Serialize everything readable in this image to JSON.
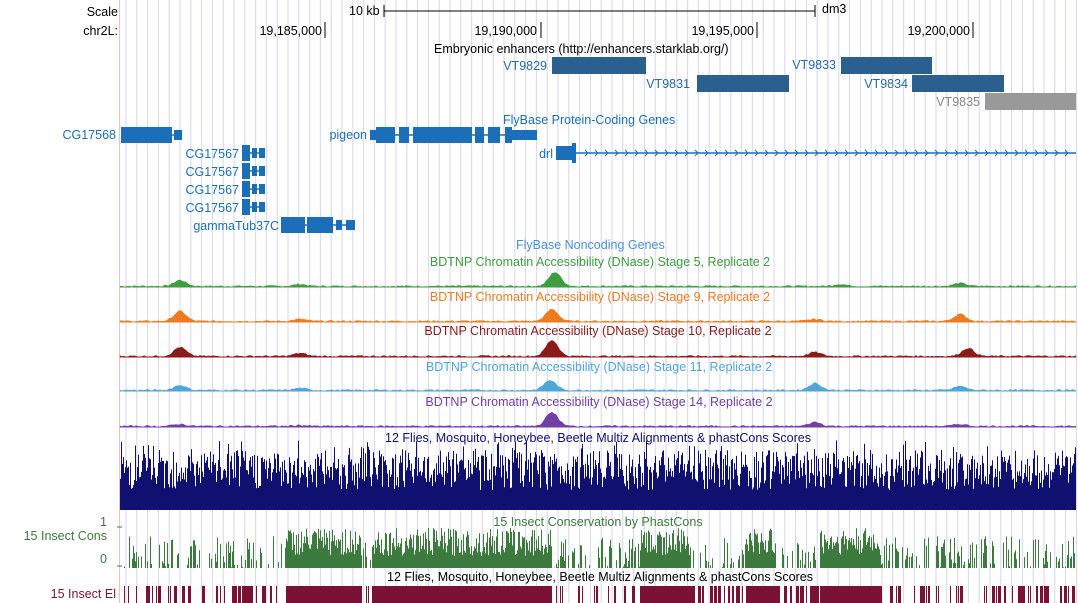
{
  "browser": {
    "scale_label": "Scale",
    "scale_bar_label": "10 kb",
    "assembly": "dm3",
    "chrom_label": "chr2L:",
    "positions": [
      "19,185,000",
      "19,190,000",
      "19,195,000",
      "19,200,000"
    ]
  },
  "enhancers": {
    "title": "Embryonic enhancers (http://enhancers.starklab.org/)",
    "items": [
      "VT9829",
      "VT9831",
      "VT9833",
      "VT9834",
      "VT9835"
    ]
  },
  "genes": {
    "title": "FlyBase Protein-Coding Genes",
    "names": [
      "CG17568",
      "pigeon",
      "drl",
      "CG17567",
      "CG17567",
      "CG17567",
      "CG17567",
      "gammaTub37C"
    ]
  },
  "noncoding": {
    "title": "FlyBase Noncoding Genes"
  },
  "dnase_tracks": [
    {
      "title": "BDTNP Chromatin Accessibility (DNase) Stage 5, Replicate 2",
      "color": "#3c9e3c"
    },
    {
      "title": "BDTNP Chromatin Accessibility (DNase) Stage 9, Replicate 2",
      "color": "#ee7b1f"
    },
    {
      "title": "BDTNP Chromatin Accessibility (DNase) Stage 10, Replicate 2",
      "color": "#8b1a1a"
    },
    {
      "title": "BDTNP Chromatin Accessibility (DNase) Stage 11, Replicate 2",
      "color": "#4ea7d8"
    },
    {
      "title": "BDTNP Chromatin Accessibility (DNase) Stage 14, Replicate 2",
      "color": "#7040a8"
    }
  ],
  "multiz": {
    "title": "12 Flies, Mosquito, Honeybee, Beetle Multiz Alignments & phastCons Scores",
    "color": "#101070"
  },
  "cons": {
    "title": "15 Insect Conservation by PhastCons",
    "side_label": "15 Insect Cons",
    "ymax": "1",
    "ymin": "0",
    "color": "#3d7a3d"
  },
  "elements": {
    "title": "12 Flies, Mosquito, Honeybee, Beetle Multiz Alignments & phastCons Scores",
    "side_label": "15 Insect El",
    "color": "#7a1236"
  }
}
